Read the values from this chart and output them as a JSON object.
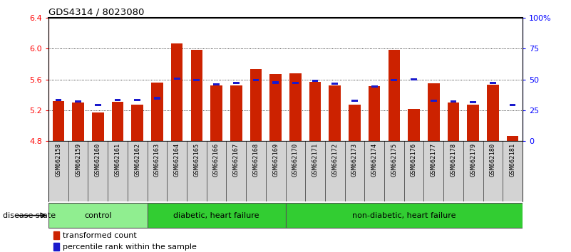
{
  "title": "GDS4314 / 8023080",
  "samples": [
    "GSM662158",
    "GSM662159",
    "GSM662160",
    "GSM662161",
    "GSM662162",
    "GSM662163",
    "GSM662164",
    "GSM662165",
    "GSM662166",
    "GSM662167",
    "GSM662168",
    "GSM662169",
    "GSM662170",
    "GSM662171",
    "GSM662172",
    "GSM662173",
    "GSM662174",
    "GSM662175",
    "GSM662176",
    "GSM662177",
    "GSM662178",
    "GSM662179",
    "GSM662180",
    "GSM662181"
  ],
  "red_values": [
    5.32,
    5.3,
    5.17,
    5.31,
    5.27,
    5.56,
    6.07,
    5.98,
    5.52,
    5.52,
    5.73,
    5.67,
    5.68,
    5.57,
    5.52,
    5.27,
    5.51,
    5.98,
    5.22,
    5.55,
    5.3,
    5.27,
    5.53,
    4.87
  ],
  "blue_values": [
    5.335,
    5.315,
    5.27,
    5.335,
    5.335,
    5.355,
    5.61,
    5.59,
    5.535,
    5.555,
    5.59,
    5.56,
    5.555,
    5.58,
    5.545,
    5.325,
    5.51,
    5.59,
    5.6,
    5.325,
    5.315,
    5.305,
    5.555,
    5.27
  ],
  "group_labels": [
    "control",
    "diabetic, heart failure",
    "non-diabetic, heart failure"
  ],
  "group_ranges": [
    [
      0,
      4
    ],
    [
      5,
      11
    ],
    [
      12,
      23
    ]
  ],
  "group_colors": [
    "#90EE90",
    "#32CD32",
    "#32CD32"
  ],
  "ylim_left": [
    4.8,
    6.4
  ],
  "yticks_left": [
    4.8,
    5.2,
    5.6,
    6.0,
    6.4
  ],
  "yticks_right": [
    0,
    25,
    50,
    75,
    100
  ],
  "ytick_labels_right": [
    "0",
    "25",
    "50",
    "75",
    "100%"
  ],
  "bar_color": "#CC2200",
  "blue_color": "#1A1ACC",
  "base": 4.8
}
